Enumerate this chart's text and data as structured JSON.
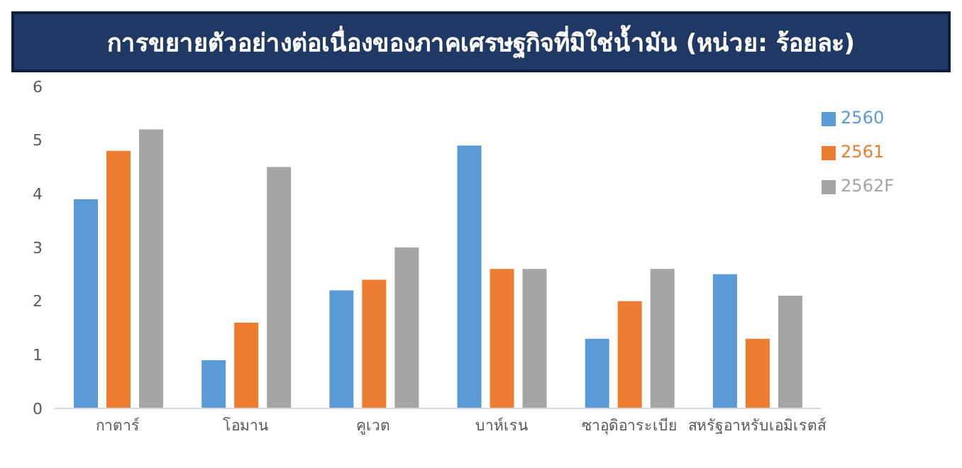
{
  "chart_data": {
    "type": "bar",
    "title": "การขยายตัวอย่างต่อเนื่องของภาคเศรษฐกิจที่มิใช่น้ำมัน (หน่วย: ร้อยละ)",
    "categories": [
      "กาตาร์",
      "โอมาน",
      "คูเวต",
      "บาห์เรน",
      "ซาอุดิอาระเบีย",
      "สหรัฐอาหรับเอมิเรตส์"
    ],
    "series": [
      {
        "name": "2560",
        "color": "#5b9bd5",
        "values": [
          3.9,
          0.9,
          2.2,
          4.9,
          1.3,
          2.5
        ]
      },
      {
        "name": "2561",
        "color": "#ed7d31",
        "values": [
          4.8,
          1.6,
          2.4,
          2.6,
          2.0,
          1.3
        ]
      },
      {
        "name": "2562F",
        "color": "#a5a5a5",
        "values": [
          5.2,
          4.5,
          3.0,
          2.6,
          2.6,
          2.1
        ]
      }
    ],
    "ylim": [
      0,
      6
    ],
    "yticks": [
      0,
      1,
      2,
      3,
      4,
      5,
      6
    ],
    "grid": false,
    "legend": "top right"
  }
}
